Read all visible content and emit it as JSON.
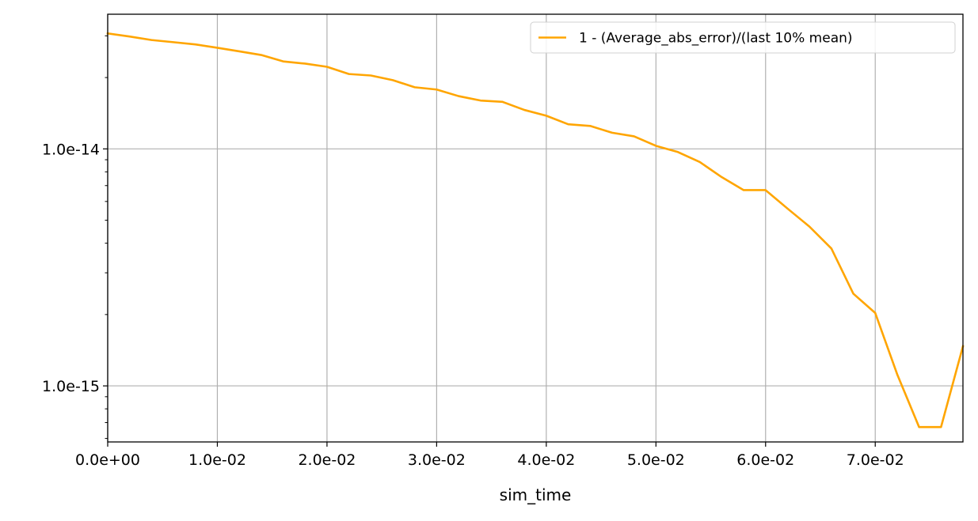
{
  "chart_data": {
    "type": "line",
    "title": "",
    "xlabel": "sim_time",
    "ylabel": "",
    "xscale": "linear",
    "yscale": "log",
    "xlim": [
      0.0,
      0.078
    ],
    "ylim": [
      5.8e-16,
      3.7e-14
    ],
    "grid": true,
    "legend_position": "top-right",
    "x_ticks": [
      {
        "value": 0.0,
        "label": "0.0e+00"
      },
      {
        "value": 0.01,
        "label": "1.0e-02"
      },
      {
        "value": 0.02,
        "label": "2.0e-02"
      },
      {
        "value": 0.03,
        "label": "3.0e-02"
      },
      {
        "value": 0.04,
        "label": "4.0e-02"
      },
      {
        "value": 0.05,
        "label": "5.0e-02"
      },
      {
        "value": 0.06,
        "label": "6.0e-02"
      },
      {
        "value": 0.07,
        "label": "7.0e-02"
      }
    ],
    "y_ticks": [
      {
        "value": 1e-15,
        "label": "1.0e-15"
      },
      {
        "value": 1e-14,
        "label": "1.0e-14"
      }
    ],
    "series": [
      {
        "name": "1 - (Average_abs_error)/(last 10% mean)",
        "color": "#ffa500",
        "x": [
          0.0,
          0.002,
          0.004,
          0.006,
          0.008,
          0.01,
          0.012,
          0.014,
          0.016,
          0.018,
          0.02,
          0.022,
          0.024,
          0.026,
          0.028,
          0.03,
          0.032,
          0.034,
          0.036,
          0.038,
          0.04,
          0.042,
          0.044,
          0.046,
          0.048,
          0.05,
          0.052,
          0.054,
          0.056,
          0.058,
          0.06,
          0.062,
          0.064,
          0.066,
          0.068,
          0.07,
          0.072,
          0.074,
          0.076,
          0.078
        ],
        "y": [
          3.07e-14,
          2.98e-14,
          2.88e-14,
          2.82e-14,
          2.76e-14,
          2.67e-14,
          2.58e-14,
          2.49e-14,
          2.34e-14,
          2.29e-14,
          2.22e-14,
          2.07e-14,
          2.04e-14,
          1.95e-14,
          1.82e-14,
          1.78e-14,
          1.67e-14,
          1.6e-14,
          1.58e-14,
          1.46e-14,
          1.38e-14,
          1.27e-14,
          1.25e-14,
          1.17e-14,
          1.13e-14,
          1.03e-14,
          9.7e-15,
          8.8e-15,
          7.6e-15,
          6.7e-15,
          6.7e-15,
          5.6e-15,
          4.7e-15,
          3.8e-15,
          2.45e-15,
          2.03e-15,
          1.12e-15,
          6.7e-16,
          6.7e-16,
          1.47e-15
        ]
      }
    ]
  }
}
